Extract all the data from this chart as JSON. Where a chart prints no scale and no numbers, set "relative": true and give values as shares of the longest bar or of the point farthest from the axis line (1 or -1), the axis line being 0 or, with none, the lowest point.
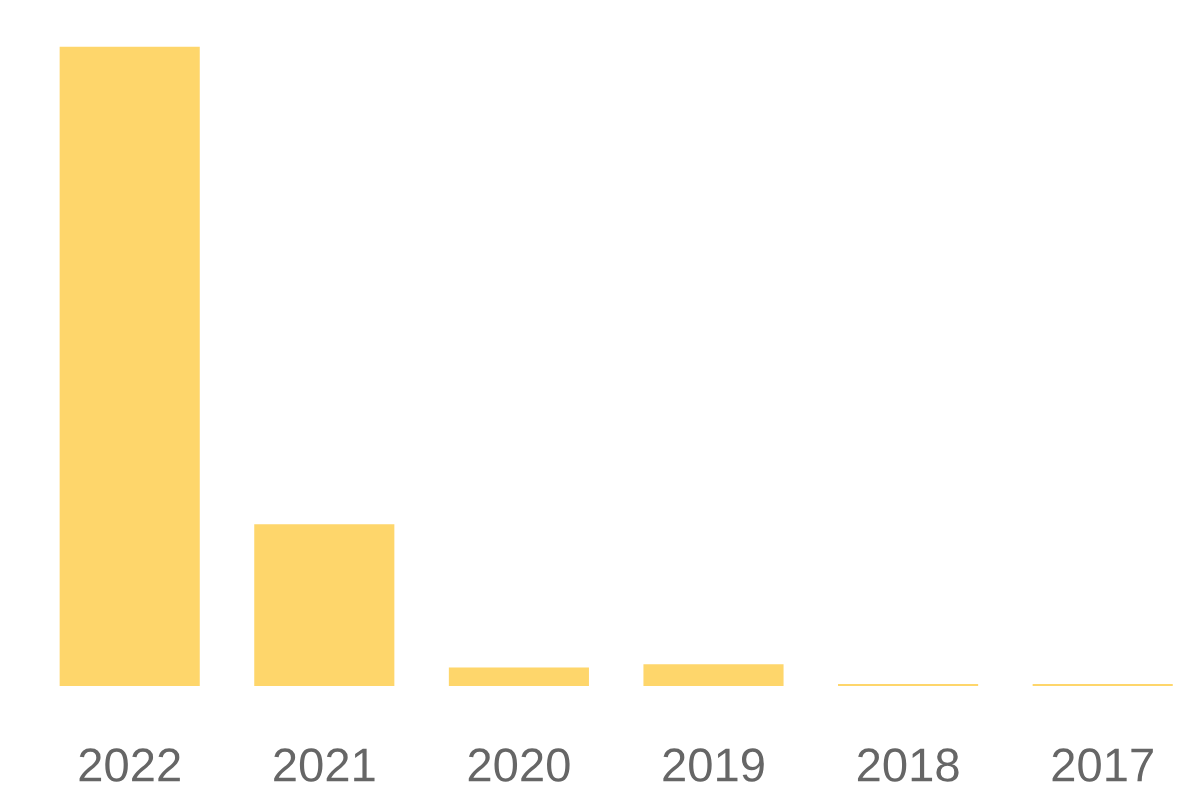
{
  "chart_data": {
    "type": "bar",
    "relative": true,
    "categories": [
      "2022",
      "2021",
      "2020",
      "2019",
      "2018",
      "2017"
    ],
    "values": [
      1,
      0.253,
      0.029,
      0.034,
      0.003,
      0.003
    ],
    "color": "#fed66b"
  }
}
